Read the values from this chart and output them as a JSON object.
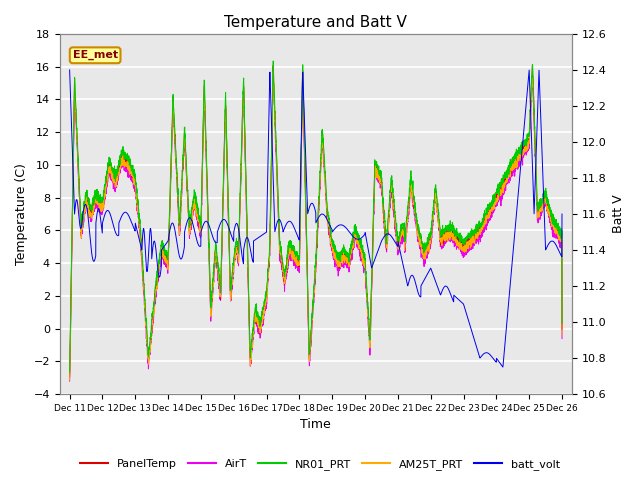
{
  "title": "Temperature and Batt V",
  "xlabel": "Time",
  "ylabel_left": "Temperature (C)",
  "ylabel_right": "Batt V",
  "annotation": "EE_met",
  "xlim_left": -0.5,
  "xlim_right": 15.5,
  "ylim_left": [
    -4,
    18
  ],
  "ylim_right": [
    10.6,
    12.6
  ],
  "yticks_left": [
    -4,
    -2,
    0,
    2,
    4,
    6,
    8,
    10,
    12,
    14,
    16,
    18
  ],
  "yticks_right": [
    10.6,
    10.8,
    11.0,
    11.2,
    11.4,
    11.6,
    11.8,
    12.0,
    12.2,
    12.4,
    12.6
  ],
  "xtick_labels": [
    "Dec 11",
    "Dec 12",
    "Dec 13",
    "Dec 14",
    "Dec 15",
    "Dec 16",
    "Dec 17",
    "Dec 18",
    "Dec 19",
    "Dec 20",
    "Dec 21",
    "Dec 22",
    "Dec 23",
    "Dec 24",
    "Dec 25",
    "Dec 26"
  ],
  "bg_color": "#ffffff",
  "plot_bg_color": "#e8e8e8",
  "grid_color": "#ffffff",
  "series_colors": {
    "PanelTemp": "#dd0000",
    "AirT": "#ee00ee",
    "NR01_PRT": "#00cc00",
    "AM25T_PRT": "#ffaa00",
    "batt_volt": "#0000ee"
  },
  "legend_entries": [
    "PanelTemp",
    "AirT",
    "NR01_PRT",
    "AM25T_PRT",
    "batt_volt"
  ],
  "annot_facecolor": "#ffff99",
  "annot_edgecolor": "#cc8800",
  "annot_textcolor": "#880000",
  "title_fontsize": 11,
  "axis_fontsize": 9,
  "tick_fontsize": 8,
  "legend_fontsize": 8
}
